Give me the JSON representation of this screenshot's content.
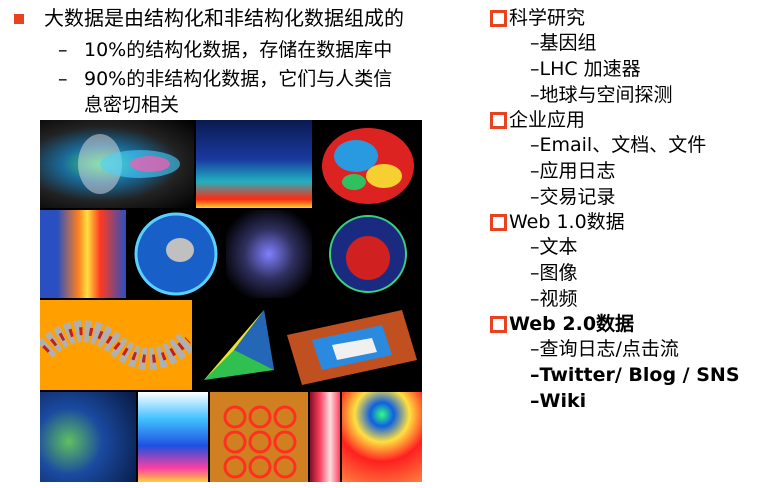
{
  "left": {
    "main_bullet": "大数据是由结构化和非结构化数据组成的",
    "sub_dash": "–",
    "sub_items": [
      "10%的结构化数据，存储在数据库中",
      "90%的非结构化数据，它们与人类信",
      "息密切相关"
    ]
  },
  "right": {
    "categories": [
      {
        "label": "科学研究",
        "items": [
          "–基因组",
          "–LHC 加速器",
          "–地球与空间探测"
        ]
      },
      {
        "label": "企业应用",
        "items": [
          "–Email、文档、文件",
          "–应用日志",
          "–交易记录"
        ]
      },
      {
        "label": "Web 1.0数据",
        "items": [
          "–文本",
          "–图像",
          "–视频"
        ]
      },
      {
        "label": "Web 2.0数据",
        "items": [
          "–查询日志/点击流",
          "–Twitter/ Blog / SNS",
          "–Wiki"
        ]
      }
    ]
  },
  "colors": {
    "accent": "#e8431e"
  }
}
